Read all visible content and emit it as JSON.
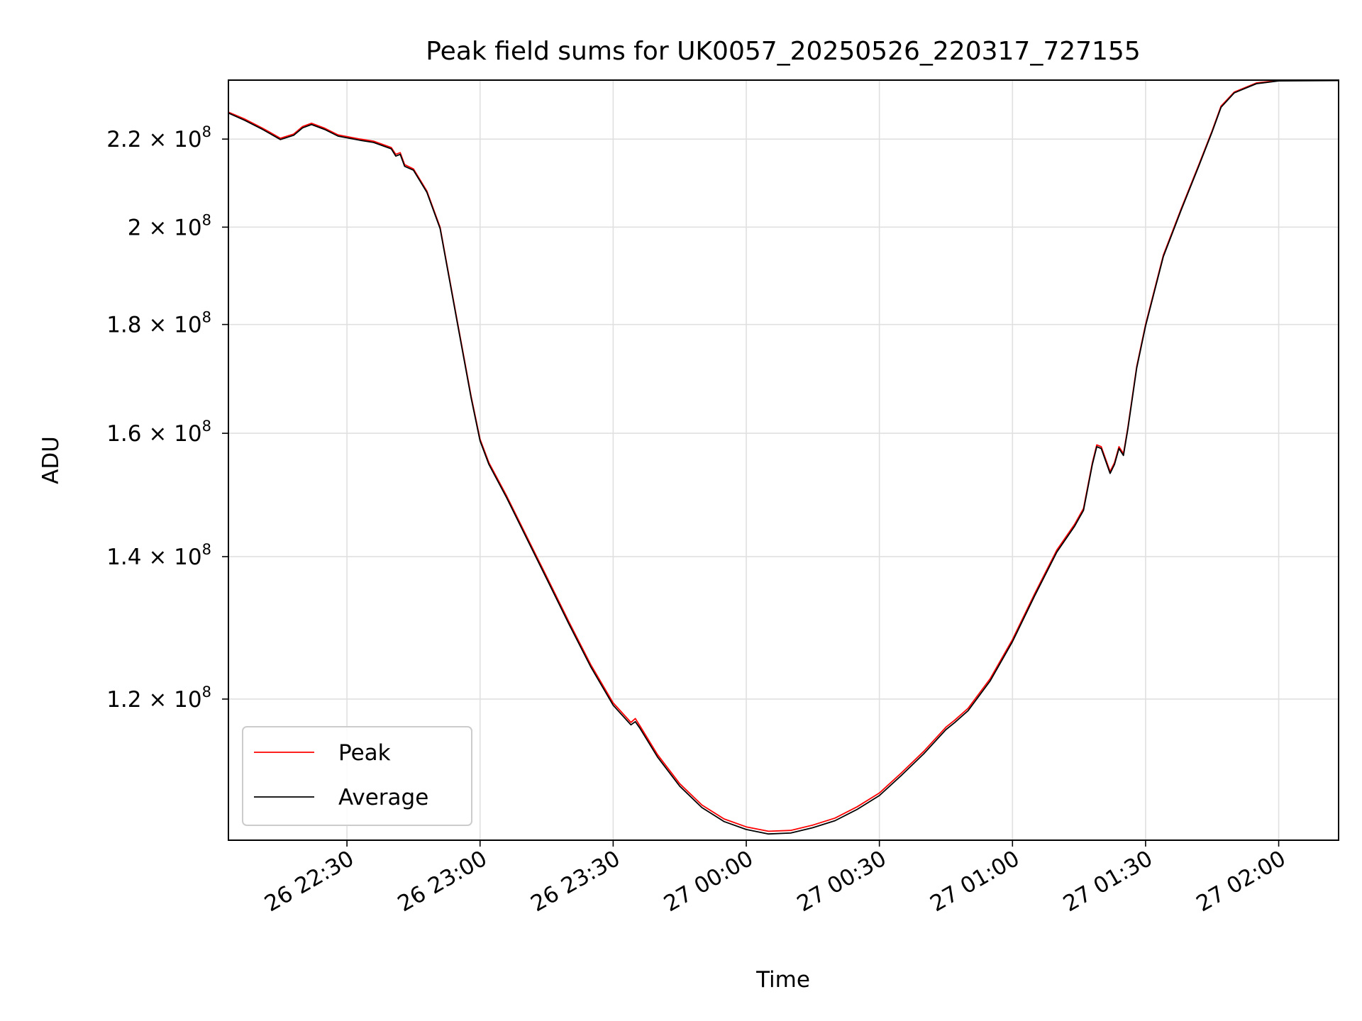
{
  "chart_data": {
    "type": "line",
    "title": "Peak field sums for UK0057_20250526_220317_727155",
    "xlabel": "Time",
    "ylabel": "ADU",
    "x_axis": "datetime",
    "x_domain": [
      "2025-05-26 22:03:17",
      "2025-05-27 02:13:30"
    ],
    "y_scale": "log",
    "ylim": [
      103000000,
      234500000
    ],
    "grid": true,
    "legend_location": "lower-left",
    "x_ticks": [
      {
        "t": "2025-05-26 22:30",
        "label": "26 22:30"
      },
      {
        "t": "2025-05-26 23:00",
        "label": "26 23:00"
      },
      {
        "t": "2025-05-26 23:30",
        "label": "26 23:30"
      },
      {
        "t": "2025-05-27 00:00",
        "label": "27 00:00"
      },
      {
        "t": "2025-05-27 00:30",
        "label": "27 00:30"
      },
      {
        "t": "2025-05-27 01:00",
        "label": "27 01:00"
      },
      {
        "t": "2025-05-27 01:30",
        "label": "27 01:30"
      },
      {
        "t": "2025-05-27 02:00",
        "label": "27 02:00"
      }
    ],
    "y_ticks": [
      {
        "value": 120000000,
        "mantissa": "1.2",
        "base": "10",
        "exp": "8"
      },
      {
        "value": 140000000,
        "mantissa": "1.4",
        "base": "10",
        "exp": "8"
      },
      {
        "value": 160000000,
        "mantissa": "1.6",
        "base": "10",
        "exp": "8"
      },
      {
        "value": 180000000,
        "mantissa": "1.8",
        "base": "10",
        "exp": "8"
      },
      {
        "value": 200000000,
        "mantissa": "2",
        "base": "10",
        "exp": "8"
      },
      {
        "value": 220000000,
        "mantissa": "2.2",
        "base": "10",
        "exp": "8"
      }
    ],
    "series": [
      {
        "name": "Peak",
        "color": "#ff0000",
        "points": [
          [
            "2025-05-26 22:03:17",
            226500000
          ],
          [
            "2025-05-26 22:07",
            224800000
          ],
          [
            "2025-05-26 22:11",
            222600000
          ],
          [
            "2025-05-26 22:13",
            221400000
          ],
          [
            "2025-05-26 22:15",
            220200000
          ],
          [
            "2025-05-26 22:18",
            221200000
          ],
          [
            "2025-05-26 22:20",
            223000000
          ],
          [
            "2025-05-26 22:22",
            223800000
          ],
          [
            "2025-05-26 22:25",
            222600000
          ],
          [
            "2025-05-26 22:28",
            221000000
          ],
          [
            "2025-05-26 22:33",
            220000000
          ],
          [
            "2025-05-26 22:36",
            219500000
          ],
          [
            "2025-05-26 22:40",
            218000000
          ],
          [
            "2025-05-26 22:41",
            216400000
          ],
          [
            "2025-05-26 22:42",
            216800000
          ],
          [
            "2025-05-26 22:43",
            214000000
          ],
          [
            "2025-05-26 22:45",
            213000000
          ],
          [
            "2025-05-26 22:48",
            208000000
          ],
          [
            "2025-05-26 22:51",
            200000000
          ],
          [
            "2025-05-26 22:55",
            180000000
          ],
          [
            "2025-05-26 22:58",
            166500000
          ],
          [
            "2025-05-26 23:00",
            159000000
          ],
          [
            "2025-05-26 23:02",
            155000000
          ],
          [
            "2025-05-26 23:06",
            149500000
          ],
          [
            "2025-05-26 23:10",
            143800000
          ],
          [
            "2025-05-26 23:15",
            137000000
          ],
          [
            "2025-05-26 23:20",
            130500000
          ],
          [
            "2025-05-26 23:25",
            124500000
          ],
          [
            "2025-05-26 23:30",
            119500000
          ],
          [
            "2025-05-26 23:34",
            117000000
          ],
          [
            "2025-05-26 23:35",
            117500000
          ],
          [
            "2025-05-26 23:36",
            116600000
          ],
          [
            "2025-05-26 23:40",
            113000000
          ],
          [
            "2025-05-26 23:45",
            109500000
          ],
          [
            "2025-05-26 23:50",
            107000000
          ],
          [
            "2025-05-26 23:55",
            105400000
          ],
          [
            "2025-05-27 00:00",
            104500000
          ],
          [
            "2025-05-27 00:05",
            104000000
          ],
          [
            "2025-05-27 00:10",
            104100000
          ],
          [
            "2025-05-27 00:15",
            104700000
          ],
          [
            "2025-05-27 00:20",
            105500000
          ],
          [
            "2025-05-27 00:25",
            106800000
          ],
          [
            "2025-05-27 00:30",
            108400000
          ],
          [
            "2025-05-27 00:35",
            110800000
          ],
          [
            "2025-05-27 00:40",
            113400000
          ],
          [
            "2025-05-27 00:45",
            116400000
          ],
          [
            "2025-05-27 00:47",
            117300000
          ],
          [
            "2025-05-27 00:50",
            118800000
          ],
          [
            "2025-05-27 00:55",
            122700000
          ],
          [
            "2025-05-27 01:00",
            128000000
          ],
          [
            "2025-05-27 01:05",
            134500000
          ],
          [
            "2025-05-27 01:10",
            141000000
          ],
          [
            "2025-05-27 01:14",
            145000000
          ],
          [
            "2025-05-27 01:16",
            147500000
          ],
          [
            "2025-05-27 01:18",
            155000000
          ],
          [
            "2025-05-27 01:19",
            158000000
          ],
          [
            "2025-05-27 01:20",
            157700000
          ],
          [
            "2025-05-27 01:22",
            153500000
          ],
          [
            "2025-05-27 01:23",
            155000000
          ],
          [
            "2025-05-27 01:24",
            157700000
          ],
          [
            "2025-05-27 01:25",
            156500000
          ],
          [
            "2025-05-27 01:26",
            161000000
          ],
          [
            "2025-05-27 01:28",
            172000000
          ],
          [
            "2025-05-27 01:30",
            180000000
          ],
          [
            "2025-05-27 01:34",
            194000000
          ],
          [
            "2025-05-27 01:38",
            204000000
          ],
          [
            "2025-05-27 01:42",
            214000000
          ],
          [
            "2025-05-27 01:45",
            222000000
          ],
          [
            "2025-05-27 01:47",
            228000000
          ],
          [
            "2025-05-27 01:50",
            231500000
          ],
          [
            "2025-05-27 01:55",
            233800000
          ],
          [
            "2025-05-27 02:00",
            234400000
          ],
          [
            "2025-05-27 02:13:30",
            234500000
          ]
        ]
      },
      {
        "name": "Average",
        "color": "#000000",
        "points": [
          [
            "2025-05-26 22:03:17",
            226300000
          ],
          [
            "2025-05-26 22:07",
            224500000
          ],
          [
            "2025-05-26 22:11",
            222300000
          ],
          [
            "2025-05-26 22:13",
            221100000
          ],
          [
            "2025-05-26 22:15",
            219900000
          ],
          [
            "2025-05-26 22:18",
            220900000
          ],
          [
            "2025-05-26 22:20",
            222700000
          ],
          [
            "2025-05-26 22:22",
            223500000
          ],
          [
            "2025-05-26 22:25",
            222300000
          ],
          [
            "2025-05-26 22:28",
            220700000
          ],
          [
            "2025-05-26 22:33",
            219700000
          ],
          [
            "2025-05-26 22:36",
            219200000
          ],
          [
            "2025-05-26 22:40",
            217700000
          ],
          [
            "2025-05-26 22:41",
            216000000
          ],
          [
            "2025-05-26 22:42",
            216400000
          ],
          [
            "2025-05-26 22:43",
            213600000
          ],
          [
            "2025-05-26 22:45",
            212700000
          ],
          [
            "2025-05-26 22:48",
            207700000
          ],
          [
            "2025-05-26 22:51",
            199700000
          ],
          [
            "2025-05-26 22:55",
            179700000
          ],
          [
            "2025-05-26 22:58",
            166200000
          ],
          [
            "2025-05-26 23:00",
            158700000
          ],
          [
            "2025-05-26 23:02",
            154700000
          ],
          [
            "2025-05-26 23:06",
            149200000
          ],
          [
            "2025-05-26 23:10",
            143500000
          ],
          [
            "2025-05-26 23:15",
            136700000
          ],
          [
            "2025-05-26 23:20",
            130200000
          ],
          [
            "2025-05-26 23:25",
            124200000
          ],
          [
            "2025-05-26 23:30",
            119200000
          ],
          [
            "2025-05-26 23:34",
            116700000
          ],
          [
            "2025-05-26 23:35",
            117100000
          ],
          [
            "2025-05-26 23:36",
            116300000
          ],
          [
            "2025-05-26 23:40",
            112700000
          ],
          [
            "2025-05-26 23:45",
            109200000
          ],
          [
            "2025-05-26 23:50",
            106700000
          ],
          [
            "2025-05-26 23:55",
            105100000
          ],
          [
            "2025-05-27 00:00",
            104200000
          ],
          [
            "2025-05-27 00:05",
            103700000
          ],
          [
            "2025-05-27 00:10",
            103800000
          ],
          [
            "2025-05-27 00:15",
            104400000
          ],
          [
            "2025-05-27 00:20",
            105200000
          ],
          [
            "2025-05-27 00:25",
            106500000
          ],
          [
            "2025-05-27 00:30",
            108100000
          ],
          [
            "2025-05-27 00:35",
            110500000
          ],
          [
            "2025-05-27 00:40",
            113100000
          ],
          [
            "2025-05-27 00:45",
            116100000
          ],
          [
            "2025-05-27 00:47",
            117000000
          ],
          [
            "2025-05-27 00:50",
            118500000
          ],
          [
            "2025-05-27 00:55",
            122400000
          ],
          [
            "2025-05-27 01:00",
            127700000
          ],
          [
            "2025-05-27 01:05",
            134200000
          ],
          [
            "2025-05-27 01:10",
            140700000
          ],
          [
            "2025-05-27 01:14",
            144700000
          ],
          [
            "2025-05-27 01:16",
            147200000
          ],
          [
            "2025-05-27 01:18",
            154700000
          ],
          [
            "2025-05-27 01:19",
            157700000
          ],
          [
            "2025-05-27 01:20",
            157400000
          ],
          [
            "2025-05-27 01:22",
            153200000
          ],
          [
            "2025-05-27 01:23",
            154700000
          ],
          [
            "2025-05-27 01:24",
            157400000
          ],
          [
            "2025-05-27 01:25",
            156200000
          ],
          [
            "2025-05-27 01:26",
            160700000
          ],
          [
            "2025-05-27 01:28",
            171700000
          ],
          [
            "2025-05-27 01:30",
            179700000
          ],
          [
            "2025-05-27 01:34",
            193700000
          ],
          [
            "2025-05-27 01:38",
            203700000
          ],
          [
            "2025-05-27 01:42",
            213700000
          ],
          [
            "2025-05-27 01:45",
            221700000
          ],
          [
            "2025-05-27 01:47",
            227700000
          ],
          [
            "2025-05-27 01:50",
            231300000
          ],
          [
            "2025-05-27 01:55",
            233600000
          ],
          [
            "2025-05-27 02:00",
            234300000
          ],
          [
            "2025-05-27 02:13:30",
            234400000
          ]
        ]
      }
    ]
  }
}
